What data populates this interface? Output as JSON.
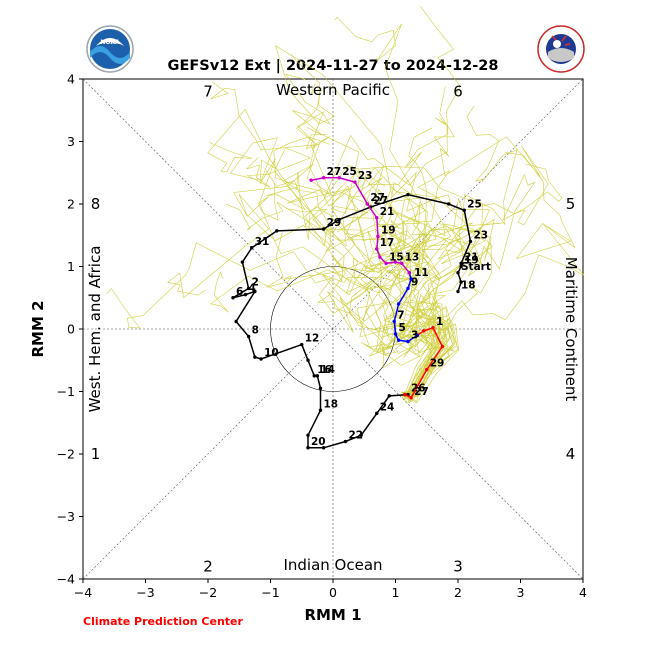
{
  "chart_data": {
    "type": "line",
    "title": "GEFSv12 Ext | 2024-11-27 to 2024-12-28",
    "xlabel": "RMM 1",
    "ylabel": "RMM 2",
    "xlim": [
      -4,
      4
    ],
    "ylim": [
      -4,
      4
    ],
    "xticks": [
      "−4",
      "−3",
      "−2",
      "−1",
      "0",
      "1",
      "2",
      "3",
      "4"
    ],
    "yticks": [
      "−4",
      "−3",
      "−2",
      "−1",
      "0",
      "1",
      "2",
      "3",
      "4"
    ],
    "phases": [
      {
        "label": "1",
        "x": -3.8,
        "y": -2.0
      },
      {
        "label": "2",
        "x": -2.0,
        "y": -3.8
      },
      {
        "label": "3",
        "x": 2.0,
        "y": -3.8
      },
      {
        "label": "4",
        "x": 3.8,
        "y": -2.0
      },
      {
        "label": "5",
        "x": 3.8,
        "y": 2.0
      },
      {
        "label": "6",
        "x": 2.0,
        "y": 3.8
      },
      {
        "label": "7",
        "x": -2.0,
        "y": 3.8
      },
      {
        "label": "8",
        "x": -3.8,
        "y": 2.0
      }
    ],
    "regions": {
      "top": "Western Pacific",
      "bottom": "Indian Ocean",
      "left": "West. Hem. and Africa",
      "right": "Maritime Continent"
    },
    "colors": {
      "observed_black": "#000000",
      "observed_blue": "#0000ff",
      "forecast_red": "#ff0000",
      "forecast_magenta": "#cc00cc",
      "ensemble": "#c8c81e",
      "credit": "#ff0000"
    },
    "observed_black": [
      {
        "x": 2.0,
        "y": 0.6,
        "label": "18"
      },
      {
        "x": 2.05,
        "y": 0.75,
        "label": ""
      },
      {
        "x": 2.0,
        "y": 0.9,
        "label": "Start"
      },
      {
        "x": 2.05,
        "y": 1.0,
        "label": "19"
      },
      {
        "x": 2.05,
        "y": 1.05,
        "label": "21"
      },
      {
        "x": 2.2,
        "y": 1.4,
        "label": "23"
      },
      {
        "x": 2.1,
        "y": 1.9,
        "label": "25"
      },
      {
        "x": 1.85,
        "y": 2.0,
        "label": ""
      },
      {
        "x": 1.2,
        "y": 2.15,
        "label": ""
      },
      {
        "x": 0.6,
        "y": 1.95,
        "label": "27"
      },
      {
        "x": 0.1,
        "y": 1.75,
        "label": ""
      },
      {
        "x": -0.15,
        "y": 1.6,
        "label": "29"
      },
      {
        "x": -0.9,
        "y": 1.57,
        "label": ""
      },
      {
        "x": -1.3,
        "y": 1.3,
        "label": "31"
      },
      {
        "x": -1.45,
        "y": 1.07,
        "label": ""
      },
      {
        "x": -1.35,
        "y": 0.65,
        "label": "2"
      },
      {
        "x": -1.6,
        "y": 0.5,
        "label": "6"
      },
      {
        "x": -1.4,
        "y": 0.55,
        "label": "4"
      },
      {
        "x": -1.25,
        "y": 0.6,
        "label": ""
      },
      {
        "x": -1.55,
        "y": 0.12,
        "label": ""
      },
      {
        "x": -1.35,
        "y": -0.12,
        "label": "8"
      },
      {
        "x": -1.25,
        "y": -0.45,
        "label": ""
      },
      {
        "x": -1.15,
        "y": -0.48,
        "label": "10"
      },
      {
        "x": -0.5,
        "y": -0.25,
        "label": "12"
      },
      {
        "x": -0.4,
        "y": -0.5,
        "label": ""
      },
      {
        "x": -0.3,
        "y": -0.75,
        "label": "16"
      },
      {
        "x": -0.25,
        "y": -0.75,
        "label": "14"
      },
      {
        "x": -0.2,
        "y": -0.95,
        "label": ""
      },
      {
        "x": -0.2,
        "y": -1.3,
        "label": "18"
      },
      {
        "x": -0.4,
        "y": -1.7,
        "label": ""
      },
      {
        "x": -0.4,
        "y": -1.9,
        "label": "20"
      },
      {
        "x": -0.15,
        "y": -1.9,
        "label": ""
      },
      {
        "x": 0.2,
        "y": -1.8,
        "label": "22"
      },
      {
        "x": 0.45,
        "y": -1.7,
        "label": ""
      },
      {
        "x": 0.7,
        "y": -1.35,
        "label": "24"
      },
      {
        "x": 0.9,
        "y": -1.07,
        "label": ""
      },
      {
        "x": 1.2,
        "y": -1.05,
        "label": "26"
      },
      {
        "x": 1.15,
        "y": -1.05,
        "label": ""
      }
    ],
    "forecast_red": [
      {
        "x": 1.15,
        "y": -1.05,
        "label": ""
      },
      {
        "x": 1.25,
        "y": -1.1,
        "label": "27"
      },
      {
        "x": 1.5,
        "y": -0.65,
        "label": "29"
      },
      {
        "x": 1.75,
        "y": -0.28,
        "label": ""
      },
      {
        "x": 1.6,
        "y": 0.02,
        "label": "1"
      },
      {
        "x": 1.45,
        "y": -0.03,
        "label": ""
      },
      {
        "x": 1.35,
        "y": -0.1,
        "label": ""
      }
    ],
    "forecast_blue": [
      {
        "x": 1.35,
        "y": -0.1,
        "label": ""
      },
      {
        "x": 1.2,
        "y": -0.2,
        "label": "3"
      },
      {
        "x": 1.05,
        "y": -0.18,
        "label": ""
      },
      {
        "x": 1.0,
        "y": -0.08,
        "label": "5"
      },
      {
        "x": 0.98,
        "y": 0.12,
        "label": "7"
      },
      {
        "x": 1.05,
        "y": 0.4,
        "label": ""
      },
      {
        "x": 1.2,
        "y": 0.65,
        "label": "9"
      },
      {
        "x": 1.25,
        "y": 0.8,
        "label": "11"
      },
      {
        "x": 1.22,
        "y": 0.9,
        "label": ""
      }
    ],
    "forecast_magenta": [
      {
        "x": 1.22,
        "y": 0.9,
        "label": ""
      },
      {
        "x": 1.1,
        "y": 1.05,
        "label": "13"
      },
      {
        "x": 1.0,
        "y": 1.07,
        "label": ""
      },
      {
        "x": 0.85,
        "y": 1.05,
        "label": "15"
      },
      {
        "x": 0.75,
        "y": 1.15,
        "label": ""
      },
      {
        "x": 0.7,
        "y": 1.28,
        "label": "17"
      },
      {
        "x": 0.72,
        "y": 1.48,
        "label": "19"
      },
      {
        "x": 0.7,
        "y": 1.78,
        "label": "21"
      },
      {
        "x": 0.55,
        "y": 2.0,
        "label": "27"
      },
      {
        "x": 0.35,
        "y": 2.35,
        "label": "23"
      },
      {
        "x": 0.1,
        "y": 2.42,
        "label": "25"
      },
      {
        "x": -0.15,
        "y": 2.42,
        "label": "27"
      },
      {
        "x": -0.35,
        "y": 2.38,
        "label": ""
      }
    ],
    "grid": false,
    "unit_circle_radius": 1
  },
  "credit": "Climate Prediction Center",
  "logos": {
    "left": "NOAA",
    "right": "NATIONAL WEATHER SERVICE"
  }
}
